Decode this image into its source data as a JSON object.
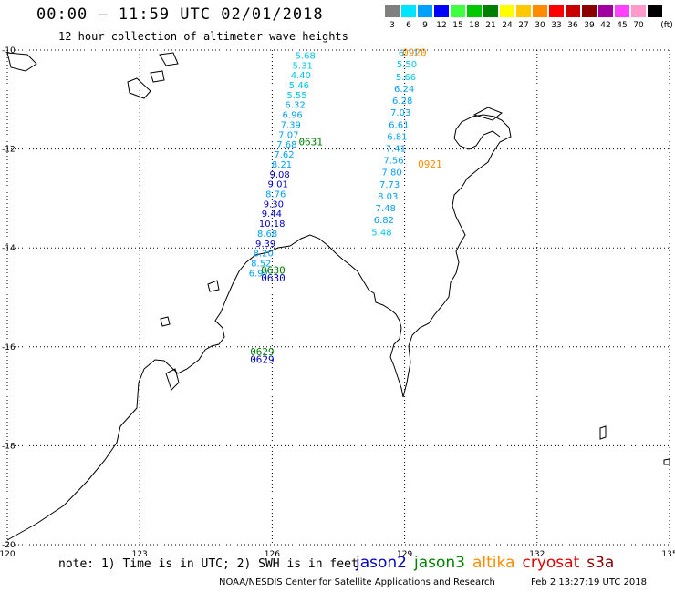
{
  "header": {
    "title": "00:00 – 11:59 UTC 02/01/2018",
    "subtitle": "12 hour collection of altimeter wave heights"
  },
  "color_scale": {
    "unit": "(ft)",
    "items": [
      {
        "label": "3",
        "color": "#808080"
      },
      {
        "label": "6",
        "color": "#00e5ff"
      },
      {
        "label": "9",
        "color": "#00a0ff"
      },
      {
        "label": "12",
        "color": "#0000ff"
      },
      {
        "label": "15",
        "color": "#40ff40"
      },
      {
        "label": "18",
        "color": "#00c800"
      },
      {
        "label": "21",
        "color": "#008000"
      },
      {
        "label": "24",
        "color": "#ffff00"
      },
      {
        "label": "27",
        "color": "#ffc800"
      },
      {
        "label": "30",
        "color": "#ff8c00"
      },
      {
        "label": "33",
        "color": "#ff0000"
      },
      {
        "label": "36",
        "color": "#c80000"
      },
      {
        "label": "39",
        "color": "#8b0000"
      },
      {
        "label": "42",
        "color": "#a000a0"
      },
      {
        "label": "45",
        "color": "#ff40ff"
      },
      {
        "label": "70",
        "color": "#ff99cc"
      },
      {
        "label": "",
        "color": "#000000"
      }
    ]
  },
  "map": {
    "lon_min": 120,
    "lon_max": 135,
    "lat_min": -20,
    "lat_max": -10,
    "lon_ticks": [
      "120",
      "123",
      "126",
      "129",
      "132",
      "135"
    ],
    "lat_ticks": [
      "-10",
      "-12",
      "-14",
      "-16",
      "-18",
      "-20"
    ],
    "tracks": [
      {
        "satellite": "jason3",
        "time_label": "0631",
        "time_lon": 126.6,
        "time_lat": -11.85,
        "color": "#008000",
        "points": [
          {
            "lon": 126.52,
            "lat": -10.1,
            "swh": "5.68"
          },
          {
            "lon": 126.46,
            "lat": -10.3,
            "swh": "5.31"
          },
          {
            "lon": 126.42,
            "lat": -10.5,
            "swh": "4.40"
          },
          {
            "lon": 126.38,
            "lat": -10.7,
            "swh": "5.46"
          },
          {
            "lon": 126.33,
            "lat": -10.9,
            "swh": "5.55"
          },
          {
            "lon": 126.29,
            "lat": -11.1,
            "swh": "6.32"
          },
          {
            "lon": 126.23,
            "lat": -11.3,
            "swh": "6.96"
          },
          {
            "lon": 126.19,
            "lat": -11.5,
            "swh": "7.39"
          },
          {
            "lon": 126.14,
            "lat": -11.7,
            "swh": "7.07"
          },
          {
            "lon": 126.1,
            "lat": -11.9,
            "swh": "7.68"
          },
          {
            "lon": 126.04,
            "lat": -12.1,
            "swh": "7.62"
          },
          {
            "lon": 125.99,
            "lat": -12.3,
            "swh": "8.21"
          },
          {
            "lon": 125.94,
            "lat": -12.5,
            "swh": "9.08"
          },
          {
            "lon": 125.9,
            "lat": -12.7,
            "swh": "9.01"
          },
          {
            "lon": 125.85,
            "lat": -12.9,
            "swh": "8.76"
          },
          {
            "lon": 125.8,
            "lat": -13.1,
            "swh": "9.30"
          },
          {
            "lon": 125.76,
            "lat": -13.3,
            "swh": "9.44"
          },
          {
            "lon": 125.7,
            "lat": -13.5,
            "swh": "10.18"
          },
          {
            "lon": 125.66,
            "lat": -13.7,
            "swh": "8.68"
          },
          {
            "lon": 125.62,
            "lat": -13.9,
            "swh": "9.39"
          },
          {
            "lon": 125.57,
            "lat": -14.1,
            "swh": "8.20"
          },
          {
            "lon": 125.52,
            "lat": -14.3,
            "swh": "8.52"
          },
          {
            "lon": 125.47,
            "lat": -14.5,
            "swh": "6.97"
          }
        ]
      },
      {
        "satellite": "jason3",
        "time_label": "0630",
        "time_lon": 125.75,
        "time_lat": -14.45,
        "color": "#008000",
        "points": []
      },
      {
        "satellite": "jason2",
        "time_label": "0630",
        "time_lon": 125.75,
        "time_lat": -14.6,
        "color": "#0000c8",
        "points": []
      },
      {
        "satellite": "altika",
        "time_label": "0920",
        "time_lon": 128.95,
        "time_lat": -10.05,
        "color": "#ff8c00",
        "points": [
          {
            "lon": 128.86,
            "lat": -10.05,
            "swh": "6.11"
          },
          {
            "lon": 128.82,
            "lat": -10.28,
            "swh": "5.50"
          },
          {
            "lon": 128.8,
            "lat": -10.53,
            "swh": "5.66"
          },
          {
            "lon": 128.76,
            "lat": -10.77,
            "swh": "6.24"
          },
          {
            "lon": 128.72,
            "lat": -11.01,
            "swh": "6.28"
          },
          {
            "lon": 128.68,
            "lat": -11.25,
            "swh": "7.03"
          },
          {
            "lon": 128.64,
            "lat": -11.5,
            "swh": "6.61"
          },
          {
            "lon": 128.6,
            "lat": -11.74,
            "swh": "6.81"
          },
          {
            "lon": 128.57,
            "lat": -11.98,
            "swh": "7.41"
          },
          {
            "lon": 128.52,
            "lat": -12.22,
            "swh": "7.56"
          },
          {
            "lon": 128.48,
            "lat": -12.46,
            "swh": "7.80"
          },
          {
            "lon": 128.43,
            "lat": -12.71,
            "swh": "7.73"
          },
          {
            "lon": 128.39,
            "lat": -12.95,
            "swh": "8.03"
          },
          {
            "lon": 128.34,
            "lat": -13.19,
            "swh": "7.48"
          },
          {
            "lon": 128.3,
            "lat": -13.43,
            "swh": "6.82"
          },
          {
            "lon": 128.25,
            "lat": -13.67,
            "swh": "5.48"
          }
        ]
      },
      {
        "satellite": "altika",
        "time_label": "0921",
        "time_lon": 129.3,
        "time_lat": -12.3,
        "color": "#ff8c00",
        "points": []
      },
      {
        "satellite": "jason3",
        "time_label": "0629",
        "time_lon": 125.5,
        "time_lat": -16.1,
        "color": "#008000",
        "points": []
      },
      {
        "satellite": "jason2",
        "time_label": "0629",
        "time_lon": 125.5,
        "time_lat": -16.25,
        "color": "#0000c8",
        "points": []
      }
    ]
  },
  "footer": {
    "note": "note: 1) Time is in UTC; 2) SWH is in feet",
    "legend": [
      {
        "label": "jason2",
        "color": "#0000c8"
      },
      {
        "label": "jason3",
        "color": "#008000"
      },
      {
        "label": "altika",
        "color": "#ff8c00"
      },
      {
        "label": "cryosat",
        "color": "#e00000"
      },
      {
        "label": "s3a",
        "color": "#8b0000"
      }
    ],
    "credit": "NOAA/NESDIS Center for Satellite Applications and Research",
    "timestamp": "Feb  2 13:27:19 UTC 2018"
  }
}
